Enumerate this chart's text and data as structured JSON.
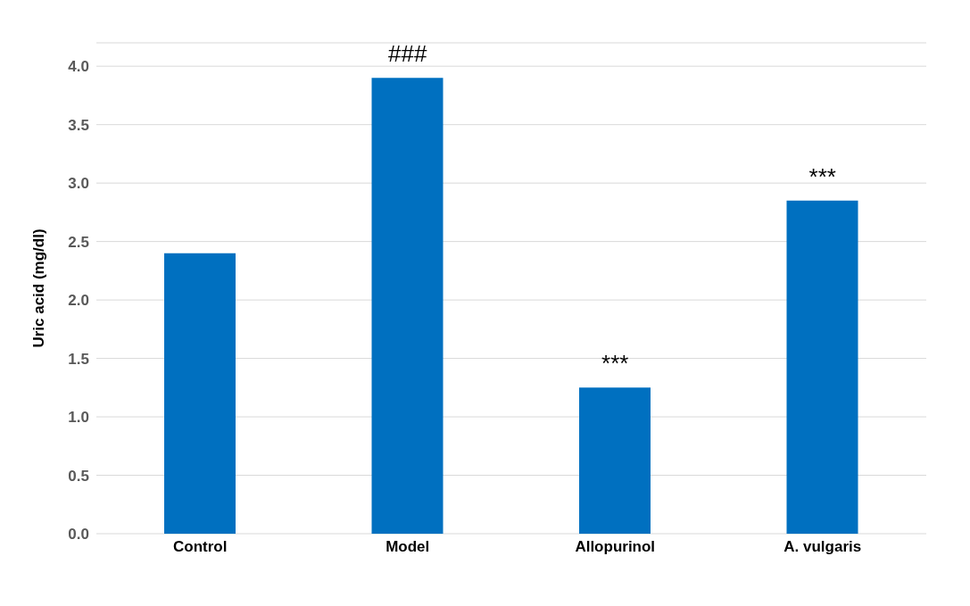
{
  "chart_data": {
    "type": "bar",
    "ylabel": "Uric acid (mg/dl)",
    "categories": [
      "Control",
      "Model",
      "Allopurinol",
      "A. vulgaris"
    ],
    "values": [
      2.4,
      3.9,
      1.25,
      2.85
    ],
    "color": "#0070c0",
    "ylim": [
      0,
      4.2
    ],
    "yticks": [
      {
        "value": 0,
        "label": "0.0"
      },
      {
        "value": 0.5,
        "label": "0.5"
      },
      {
        "value": 1,
        "label": "1.0"
      },
      {
        "value": 1.5,
        "label": "1.5"
      },
      {
        "value": 2,
        "label": "2.0"
      },
      {
        "value": 2.5,
        "label": "2.5"
      },
      {
        "value": 3,
        "label": "3.0"
      },
      {
        "value": 3.5,
        "label": "3.5"
      },
      {
        "value": 4,
        "label": "4.0"
      }
    ],
    "grid": "y",
    "annotations": [
      {
        "text": "###",
        "x": "Model",
        "y": 3.9
      },
      {
        "text": "***",
        "x": "Allopurinol",
        "y": 1.25
      },
      {
        "text": "***",
        "x": "A. vulgaris",
        "y": 2.85
      }
    ]
  }
}
